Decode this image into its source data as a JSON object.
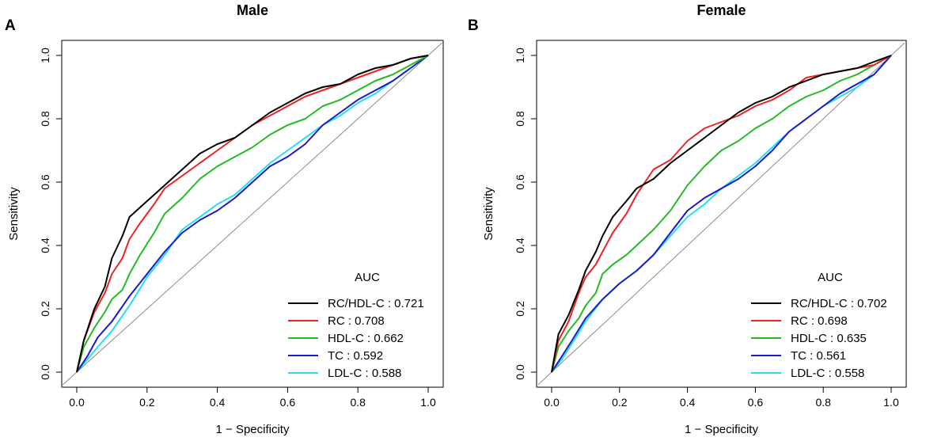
{
  "chart_data": [
    {
      "panel_label": "A",
      "type": "line",
      "title": "Male",
      "xlabel": "1 − Specificity",
      "ylabel": "Sensitivity",
      "xlim": [
        0,
        1
      ],
      "ylim": [
        0,
        1
      ],
      "xticks": [
        "0.0",
        "0.2",
        "0.4",
        "0.6",
        "0.8",
        "1.0"
      ],
      "yticks": [
        "0.0",
        "0.2",
        "0.4",
        "0.6",
        "0.8",
        "1.0"
      ],
      "legend_title": "AUC",
      "legend_position": "bottom-right",
      "reference_line": [
        [
          0,
          0
        ],
        [
          1,
          1
        ]
      ],
      "series": [
        {
          "name": "RC/HDL-C",
          "label": "RC/HDL-C : 0.721",
          "color": "#000000",
          "points": [
            [
              0,
              0
            ],
            [
              0.02,
              0.1
            ],
            [
              0.05,
              0.2
            ],
            [
              0.08,
              0.27
            ],
            [
              0.1,
              0.36
            ],
            [
              0.13,
              0.43
            ],
            [
              0.15,
              0.49
            ],
            [
              0.18,
              0.52
            ],
            [
              0.22,
              0.56
            ],
            [
              0.25,
              0.59
            ],
            [
              0.3,
              0.64
            ],
            [
              0.35,
              0.69
            ],
            [
              0.4,
              0.72
            ],
            [
              0.45,
              0.74
            ],
            [
              0.5,
              0.78
            ],
            [
              0.55,
              0.82
            ],
            [
              0.6,
              0.85
            ],
            [
              0.65,
              0.88
            ],
            [
              0.7,
              0.9
            ],
            [
              0.75,
              0.91
            ],
            [
              0.8,
              0.94
            ],
            [
              0.85,
              0.96
            ],
            [
              0.9,
              0.97
            ],
            [
              0.95,
              0.99
            ],
            [
              1,
              1
            ]
          ]
        },
        {
          "name": "RC",
          "label": "RC : 0.708",
          "color": "#ee2222",
          "points": [
            [
              0,
              0
            ],
            [
              0.02,
              0.1
            ],
            [
              0.05,
              0.19
            ],
            [
              0.08,
              0.25
            ],
            [
              0.1,
              0.31
            ],
            [
              0.13,
              0.36
            ],
            [
              0.15,
              0.42
            ],
            [
              0.18,
              0.47
            ],
            [
              0.22,
              0.53
            ],
            [
              0.25,
              0.58
            ],
            [
              0.3,
              0.62
            ],
            [
              0.35,
              0.66
            ],
            [
              0.4,
              0.7
            ],
            [
              0.45,
              0.74
            ],
            [
              0.5,
              0.78
            ],
            [
              0.55,
              0.81
            ],
            [
              0.6,
              0.84
            ],
            [
              0.65,
              0.87
            ],
            [
              0.7,
              0.89
            ],
            [
              0.75,
              0.91
            ],
            [
              0.8,
              0.93
            ],
            [
              0.85,
              0.95
            ],
            [
              0.9,
              0.97
            ],
            [
              0.95,
              0.99
            ],
            [
              1,
              1
            ]
          ]
        },
        {
          "name": "HDL-C",
          "label": "HDL-C : 0.662",
          "color": "#22bb22",
          "points": [
            [
              0,
              0
            ],
            [
              0.02,
              0.08
            ],
            [
              0.05,
              0.14
            ],
            [
              0.08,
              0.19
            ],
            [
              0.1,
              0.23
            ],
            [
              0.13,
              0.26
            ],
            [
              0.15,
              0.31
            ],
            [
              0.18,
              0.37
            ],
            [
              0.22,
              0.44
            ],
            [
              0.25,
              0.5
            ],
            [
              0.3,
              0.55
            ],
            [
              0.35,
              0.61
            ],
            [
              0.4,
              0.65
            ],
            [
              0.45,
              0.68
            ],
            [
              0.5,
              0.71
            ],
            [
              0.55,
              0.75
            ],
            [
              0.6,
              0.78
            ],
            [
              0.65,
              0.8
            ],
            [
              0.7,
              0.84
            ],
            [
              0.75,
              0.86
            ],
            [
              0.8,
              0.89
            ],
            [
              0.85,
              0.92
            ],
            [
              0.9,
              0.94
            ],
            [
              0.95,
              0.97
            ],
            [
              1,
              1
            ]
          ]
        },
        {
          "name": "TC",
          "label": "TC : 0.592",
          "color": "#1a1acc",
          "points": [
            [
              0,
              0
            ],
            [
              0.03,
              0.05
            ],
            [
              0.06,
              0.11
            ],
            [
              0.1,
              0.16
            ],
            [
              0.15,
              0.24
            ],
            [
              0.2,
              0.31
            ],
            [
              0.25,
              0.38
            ],
            [
              0.3,
              0.44
            ],
            [
              0.35,
              0.48
            ],
            [
              0.4,
              0.51
            ],
            [
              0.45,
              0.55
            ],
            [
              0.5,
              0.6
            ],
            [
              0.55,
              0.65
            ],
            [
              0.6,
              0.68
            ],
            [
              0.65,
              0.72
            ],
            [
              0.7,
              0.78
            ],
            [
              0.75,
              0.82
            ],
            [
              0.8,
              0.86
            ],
            [
              0.85,
              0.89
            ],
            [
              0.9,
              0.92
            ],
            [
              0.95,
              0.96
            ],
            [
              1,
              1
            ]
          ]
        },
        {
          "name": "LDL-C",
          "label": "LDL-C : 0.588",
          "color": "#22e0f0",
          "points": [
            [
              0,
              0
            ],
            [
              0.03,
              0.04
            ],
            [
              0.06,
              0.08
            ],
            [
              0.1,
              0.13
            ],
            [
              0.15,
              0.21
            ],
            [
              0.2,
              0.3
            ],
            [
              0.25,
              0.37
            ],
            [
              0.3,
              0.45
            ],
            [
              0.35,
              0.49
            ],
            [
              0.4,
              0.53
            ],
            [
              0.45,
              0.56
            ],
            [
              0.5,
              0.61
            ],
            [
              0.55,
              0.66
            ],
            [
              0.6,
              0.7
            ],
            [
              0.65,
              0.74
            ],
            [
              0.7,
              0.78
            ],
            [
              0.75,
              0.81
            ],
            [
              0.8,
              0.85
            ],
            [
              0.85,
              0.88
            ],
            [
              0.9,
              0.92
            ],
            [
              0.95,
              0.96
            ],
            [
              1,
              1
            ]
          ]
        }
      ]
    },
    {
      "panel_label": "B",
      "type": "line",
      "title": "Female",
      "xlabel": "1 − Specificity",
      "ylabel": "Sensitivity",
      "xlim": [
        0,
        1
      ],
      "ylim": [
        0,
        1
      ],
      "xticks": [
        "0.0",
        "0.2",
        "0.4",
        "0.6",
        "0.8",
        "1.0"
      ],
      "yticks": [
        "0.0",
        "0.2",
        "0.4",
        "0.6",
        "0.8",
        "1.0"
      ],
      "legend_title": "AUC",
      "legend_position": "bottom-right",
      "reference_line": [
        [
          0,
          0
        ],
        [
          1,
          1
        ]
      ],
      "series": [
        {
          "name": "RC/HDL-C",
          "label": "RC/HDL-C : 0.702",
          "color": "#000000",
          "points": [
            [
              0,
              0
            ],
            [
              0.02,
              0.12
            ],
            [
              0.05,
              0.18
            ],
            [
              0.08,
              0.26
            ],
            [
              0.1,
              0.32
            ],
            [
              0.13,
              0.38
            ],
            [
              0.15,
              0.43
            ],
            [
              0.18,
              0.49
            ],
            [
              0.22,
              0.54
            ],
            [
              0.25,
              0.58
            ],
            [
              0.3,
              0.61
            ],
            [
              0.35,
              0.66
            ],
            [
              0.4,
              0.7
            ],
            [
              0.45,
              0.74
            ],
            [
              0.5,
              0.78
            ],
            [
              0.55,
              0.82
            ],
            [
              0.6,
              0.85
            ],
            [
              0.65,
              0.87
            ],
            [
              0.7,
              0.9
            ],
            [
              0.75,
              0.92
            ],
            [
              0.8,
              0.94
            ],
            [
              0.85,
              0.95
            ],
            [
              0.9,
              0.96
            ],
            [
              0.95,
              0.98
            ],
            [
              1,
              1
            ]
          ]
        },
        {
          "name": "RC",
          "label": "RC : 0.698",
          "color": "#ee2222",
          "points": [
            [
              0,
              0
            ],
            [
              0.02,
              0.1
            ],
            [
              0.05,
              0.16
            ],
            [
              0.08,
              0.25
            ],
            [
              0.1,
              0.3
            ],
            [
              0.13,
              0.34
            ],
            [
              0.15,
              0.38
            ],
            [
              0.18,
              0.44
            ],
            [
              0.22,
              0.5
            ],
            [
              0.25,
              0.56
            ],
            [
              0.3,
              0.64
            ],
            [
              0.35,
              0.67
            ],
            [
              0.4,
              0.73
            ],
            [
              0.45,
              0.77
            ],
            [
              0.5,
              0.79
            ],
            [
              0.55,
              0.81
            ],
            [
              0.6,
              0.84
            ],
            [
              0.65,
              0.86
            ],
            [
              0.7,
              0.89
            ],
            [
              0.75,
              0.93
            ],
            [
              0.8,
              0.94
            ],
            [
              0.85,
              0.95
            ],
            [
              0.9,
              0.96
            ],
            [
              0.95,
              0.97
            ],
            [
              1,
              1
            ]
          ]
        },
        {
          "name": "HDL-C",
          "label": "HDL-C : 0.635",
          "color": "#22bb22",
          "points": [
            [
              0,
              0
            ],
            [
              0.02,
              0.08
            ],
            [
              0.05,
              0.13
            ],
            [
              0.08,
              0.17
            ],
            [
              0.1,
              0.21
            ],
            [
              0.13,
              0.25
            ],
            [
              0.15,
              0.31
            ],
            [
              0.18,
              0.34
            ],
            [
              0.22,
              0.37
            ],
            [
              0.25,
              0.4
            ],
            [
              0.3,
              0.45
            ],
            [
              0.35,
              0.51
            ],
            [
              0.4,
              0.59
            ],
            [
              0.45,
              0.65
            ],
            [
              0.5,
              0.7
            ],
            [
              0.55,
              0.73
            ],
            [
              0.6,
              0.77
            ],
            [
              0.65,
              0.8
            ],
            [
              0.7,
              0.84
            ],
            [
              0.75,
              0.87
            ],
            [
              0.8,
              0.89
            ],
            [
              0.85,
              0.92
            ],
            [
              0.9,
              0.94
            ],
            [
              0.95,
              0.97
            ],
            [
              1,
              1
            ]
          ]
        },
        {
          "name": "TC",
          "label": "TC : 0.561",
          "color": "#1a1acc",
          "points": [
            [
              0,
              0
            ],
            [
              0.03,
              0.05
            ],
            [
              0.06,
              0.1
            ],
            [
              0.1,
              0.17
            ],
            [
              0.15,
              0.23
            ],
            [
              0.2,
              0.28
            ],
            [
              0.25,
              0.32
            ],
            [
              0.3,
              0.37
            ],
            [
              0.35,
              0.44
            ],
            [
              0.4,
              0.51
            ],
            [
              0.45,
              0.55
            ],
            [
              0.5,
              0.58
            ],
            [
              0.55,
              0.61
            ],
            [
              0.6,
              0.65
            ],
            [
              0.65,
              0.7
            ],
            [
              0.7,
              0.76
            ],
            [
              0.75,
              0.8
            ],
            [
              0.8,
              0.84
            ],
            [
              0.85,
              0.88
            ],
            [
              0.9,
              0.91
            ],
            [
              0.95,
              0.94
            ],
            [
              1,
              1
            ]
          ]
        },
        {
          "name": "LDL-C",
          "label": "LDL-C : 0.558",
          "color": "#22e0f0",
          "points": [
            [
              0,
              0
            ],
            [
              0.03,
              0.04
            ],
            [
              0.06,
              0.09
            ],
            [
              0.1,
              0.16
            ],
            [
              0.15,
              0.23
            ],
            [
              0.2,
              0.28
            ],
            [
              0.25,
              0.32
            ],
            [
              0.3,
              0.37
            ],
            [
              0.35,
              0.43
            ],
            [
              0.4,
              0.49
            ],
            [
              0.45,
              0.53
            ],
            [
              0.5,
              0.58
            ],
            [
              0.55,
              0.62
            ],
            [
              0.6,
              0.66
            ],
            [
              0.65,
              0.71
            ],
            [
              0.7,
              0.76
            ],
            [
              0.75,
              0.8
            ],
            [
              0.8,
              0.84
            ],
            [
              0.85,
              0.87
            ],
            [
              0.9,
              0.9
            ],
            [
              0.95,
              0.94
            ],
            [
              1,
              1
            ]
          ]
        }
      ]
    }
  ]
}
